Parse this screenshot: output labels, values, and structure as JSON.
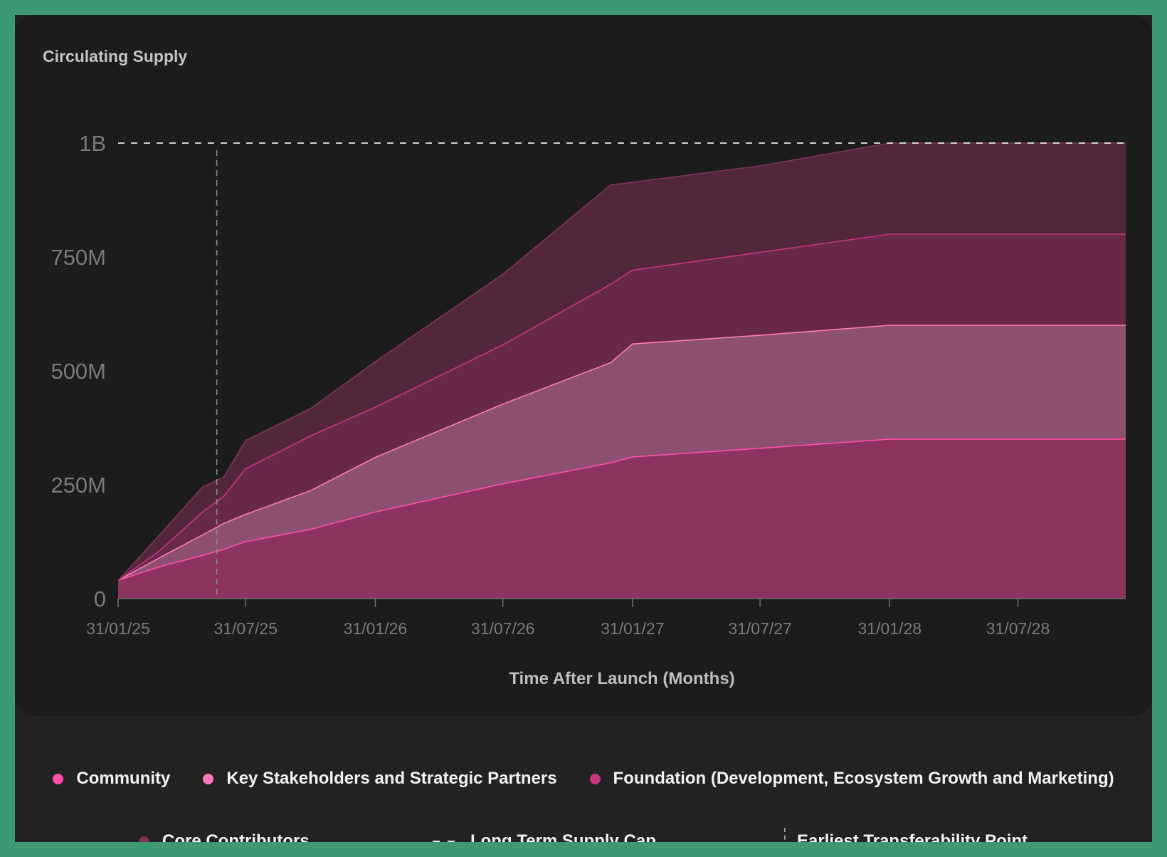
{
  "card_title": "Circulating Supply",
  "chart_data": {
    "type": "area",
    "stacked": true,
    "title": "Circulating Supply",
    "xlabel": "Time After Launch (Months)",
    "ylabel": "",
    "x_ticks": [
      "31/01/25",
      "31/07/25",
      "31/01/26",
      "31/07/26",
      "31/01/27",
      "31/07/27",
      "31/01/28",
      "31/07/28"
    ],
    "y_ticks": [
      "0",
      "250M",
      "500M",
      "750M",
      "1B"
    ],
    "ylim": [
      0,
      1000
    ],
    "xlim": [
      "2025-01-31",
      "2028-12-31"
    ],
    "x": [
      "2025-01-31",
      "2025-03-31",
      "2025-05-31",
      "2025-06-30",
      "2025-07-31",
      "2025-10-31",
      "2026-01-31",
      "2026-07-31",
      "2026-12-31",
      "2027-01-31",
      "2027-07-31",
      "2028-01-31",
      "2028-12-31"
    ],
    "series": [
      {
        "name": "Community",
        "color": "#ff4fa8",
        "fill": "#8c3360",
        "values": [
          40,
          70,
          95,
          108,
          125,
          152,
          190,
          252,
          298,
          311,
          330,
          350,
          350
        ]
      },
      {
        "name": "Key Stakeholders and Strategic Partners",
        "color": "#ff79bd",
        "fill": "#8e5070",
        "values": [
          0,
          20,
          45,
          57,
          60,
          85,
          120,
          175,
          220,
          248,
          248,
          250,
          250
        ]
      },
      {
        "name": "Foundation (Development, Ecosystem Growth and Marketing)",
        "color": "#c8357f",
        "fill": "#68284a",
        "values": [
          0,
          15,
          50,
          60,
          100,
          120,
          110,
          130,
          172,
          162,
          182,
          200,
          200
        ]
      },
      {
        "name": "Core Contributors",
        "color": "#7e3457",
        "fill": "#52273b",
        "values": [
          0,
          35,
          55,
          42,
          62,
          60,
          100,
          155,
          218,
          193,
          190,
          200,
          200
        ]
      }
    ],
    "supply_cap": {
      "label": "Long Term Supply Cap",
      "value": 1000
    },
    "transferability": {
      "label": "Earliest Transferability Point",
      "date": "2025-06-20"
    },
    "legend_position": "bottom",
    "grid": false
  },
  "legend": {
    "community": "Community",
    "stakeholders": "Key Stakeholders and Strategic Partners",
    "foundation": "Foundation (Development, Ecosystem Growth and Marketing)",
    "core": "Core Contributors",
    "cap": "Long Term Supply Cap",
    "transfer": "Earliest Transferability Point"
  },
  "colors": {
    "background": "#1c1c1c",
    "frame": "#3d9970",
    "community": "#ff4fa8",
    "stakeholders": "#ff79bd",
    "foundation": "#c8357f",
    "core": "#7e3457"
  }
}
